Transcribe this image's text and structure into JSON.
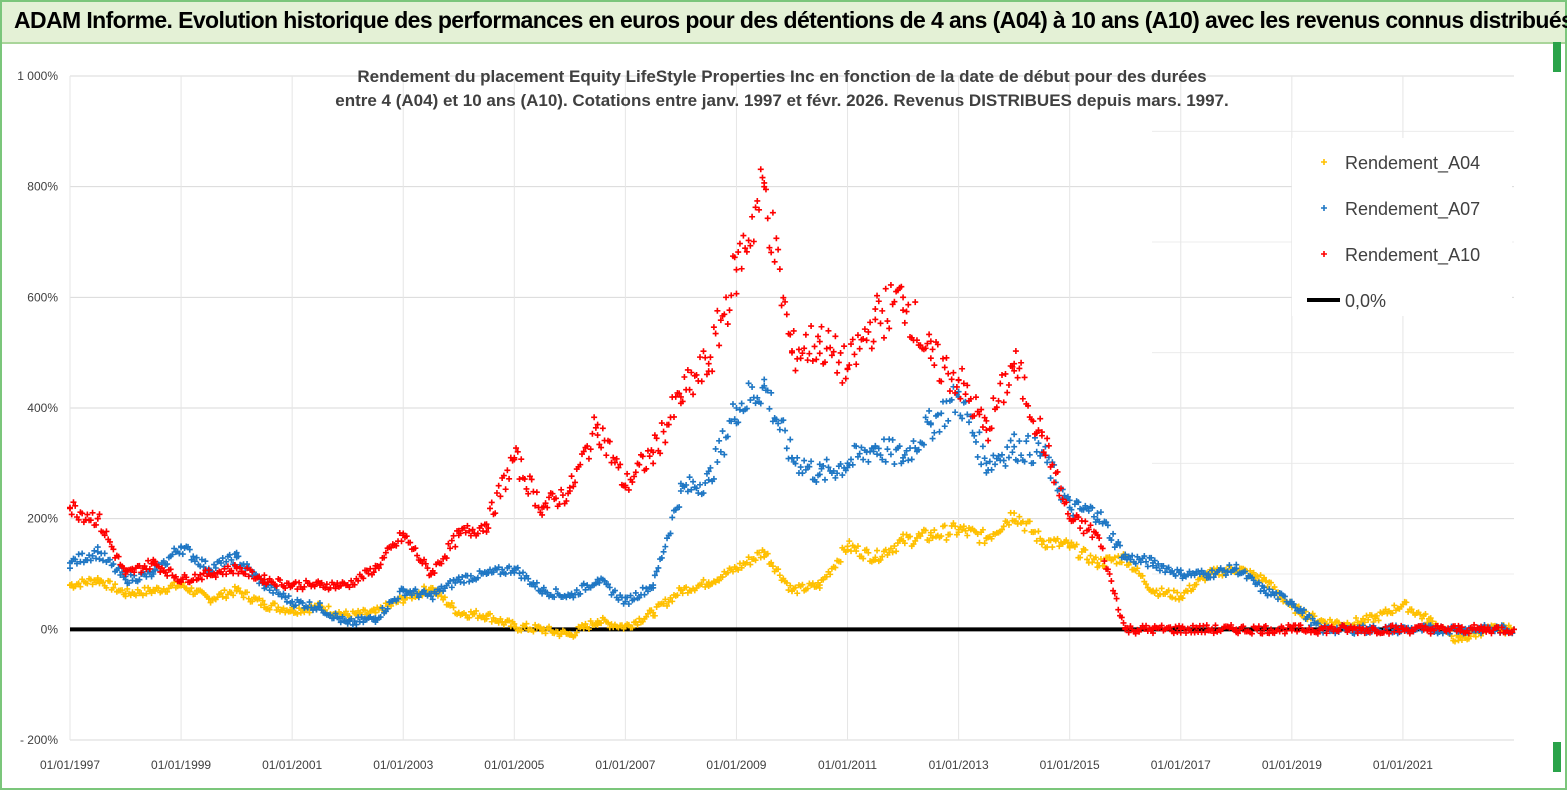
{
  "banner": {
    "title": "ADAM Informe. Evolution historique des performances en euros pour des détentions de 4 ans (A04) à 10 ans (A10) avec les revenus connus distribués"
  },
  "colors": {
    "a04": "#ffc000",
    "a07": "#1f77c4",
    "a10": "#ff0000",
    "zero": "#000000",
    "grid": "#d9d9d9",
    "accent": "#2aa34a"
  },
  "chart_data": {
    "type": "scatter",
    "title_lines": [
      "Rendement du placement Equity LifeStyle Properties Inc en fonction de la date de début pour des durées",
      "entre 4 (A04) et 10 ans (A10). Cotations entre janv. 1997 et févr. 2026. Revenus DISTRIBUES depuis mars. 1997."
    ],
    "xlabel": "",
    "ylabel": "",
    "xlim": [
      1997.0,
      2023.0
    ],
    "ylim": [
      -200,
      1000
    ],
    "y_ticks": [
      -200,
      0,
      200,
      400,
      600,
      800,
      1000
    ],
    "y_tick_labels": [
      "- 200%",
      "0%",
      "200%",
      "400%",
      "600%",
      "800%",
      "1 000%"
    ],
    "x_ticks": [
      1997,
      1999,
      2001,
      2003,
      2005,
      2007,
      2009,
      2011,
      2013,
      2015,
      2017,
      2019,
      2021
    ],
    "x_tick_labels": [
      "01/01/1997",
      "01/01/1999",
      "01/01/2001",
      "01/01/2003",
      "01/01/2005",
      "01/01/2007",
      "01/01/2009",
      "01/01/2011",
      "01/01/2013",
      "01/01/2015",
      "01/01/2017",
      "01/01/2019",
      "01/01/2021"
    ],
    "legend_position": "right",
    "series": [
      {
        "name": "Rendement_A04",
        "color_key": "a04",
        "x": [
          1997.0,
          1997.5,
          1998.0,
          1998.5,
          1999.0,
          1999.5,
          2000.0,
          2000.5,
          2001.0,
          2001.5,
          2002.0,
          2002.5,
          2003.0,
          2003.5,
          2004.0,
          2004.5,
          2005.0,
          2005.5,
          2006.0,
          2006.5,
          2007.0,
          2007.5,
          2008.0,
          2008.5,
          2009.0,
          2009.5,
          2010.0,
          2010.5,
          2011.0,
          2011.5,
          2012.0,
          2012.5,
          2013.0,
          2013.5,
          2014.0,
          2014.5,
          2015.0,
          2015.5,
          2016.0,
          2016.5,
          2017.0,
          2017.5,
          2018.0,
          2018.5,
          2019.0,
          2019.5,
          2020.0,
          2020.5,
          2021.0,
          2021.5,
          2022.0,
          2022.5,
          2023.0
        ],
        "y": [
          80,
          90,
          65,
          70,
          80,
          55,
          70,
          45,
          35,
          40,
          25,
          30,
          55,
          75,
          30,
          25,
          5,
          0,
          -10,
          15,
          5,
          30,
          70,
          85,
          110,
          140,
          70,
          80,
          150,
          130,
          160,
          170,
          180,
          165,
          210,
          160,
          150,
          120,
          130,
          70,
          60,
          100,
          110,
          90,
          40,
          15,
          10,
          20,
          45,
          15,
          -20,
          0,
          0
        ]
      },
      {
        "name": "Rendement_A07",
        "color_key": "a07",
        "x": [
          1997.0,
          1997.5,
          1998.0,
          1998.5,
          1999.0,
          1999.5,
          2000.0,
          2000.5,
          2001.0,
          2001.5,
          2002.0,
          2002.5,
          2003.0,
          2003.5,
          2004.0,
          2004.5,
          2005.0,
          2005.5,
          2006.0,
          2006.5,
          2007.0,
          2007.5,
          2008.0,
          2008.5,
          2009.0,
          2009.5,
          2010.0,
          2010.5,
          2011.0,
          2011.5,
          2012.0,
          2012.5,
          2013.0,
          2013.5,
          2014.0,
          2014.5,
          2015.0,
          2015.5,
          2016.0,
          2016.5,
          2017.0,
          2017.5,
          2018.0,
          2018.5,
          2019.0,
          2019.5,
          2020.0,
          2020.5,
          2021.0,
          2021.5,
          2022.0,
          2022.5,
          2023.0
        ],
        "y": [
          120,
          140,
          90,
          100,
          150,
          110,
          130,
          80,
          50,
          40,
          10,
          20,
          70,
          60,
          90,
          100,
          110,
          70,
          60,
          90,
          50,
          80,
          250,
          270,
          400,
          440,
          310,
          280,
          300,
          330,
          310,
          370,
          420,
          300,
          330,
          320,
          220,
          210,
          130,
          120,
          100,
          100,
          110,
          70,
          50,
          0,
          0,
          0,
          0,
          0,
          0,
          0,
          0
        ]
      },
      {
        "name": "Rendement_A10",
        "color_key": "a10",
        "x": [
          1997.0,
          1997.5,
          1998.0,
          1998.5,
          1999.0,
          1999.5,
          2000.0,
          2000.5,
          2001.0,
          2001.5,
          2002.0,
          2002.5,
          2003.0,
          2003.5,
          2004.0,
          2004.5,
          2005.0,
          2005.5,
          2006.0,
          2006.5,
          2007.0,
          2007.5,
          2008.0,
          2008.5,
          2009.0,
          2009.5,
          2010.0,
          2010.5,
          2011.0,
          2011.5,
          2012.0,
          2012.5,
          2013.0,
          2013.5,
          2014.0,
          2014.5,
          2015.0,
          2015.5,
          2016.0,
          2016.5,
          2017.0,
          2017.5,
          2018.0,
          2018.5,
          2019.0,
          2019.5,
          2020.0,
          2020.5,
          2021.0,
          2021.5,
          2022.0,
          2022.5,
          2023.0
        ],
        "y": [
          220,
          200,
          100,
          120,
          90,
          100,
          110,
          90,
          80,
          80,
          80,
          110,
          170,
          100,
          170,
          190,
          310,
          220,
          250,
          370,
          260,
          320,
          420,
          480,
          650,
          800,
          500,
          520,
          470,
          560,
          600,
          490,
          450,
          360,
          480,
          350,
          200,
          170,
          0,
          0,
          0,
          0,
          0,
          0,
          0,
          0,
          0,
          0,
          0,
          0,
          0,
          0,
          0
        ]
      },
      {
        "name": "0,0%",
        "color_key": "zero",
        "type": "line",
        "x": [
          1997.0,
          2023.0
        ],
        "y": [
          0,
          0
        ]
      }
    ]
  }
}
